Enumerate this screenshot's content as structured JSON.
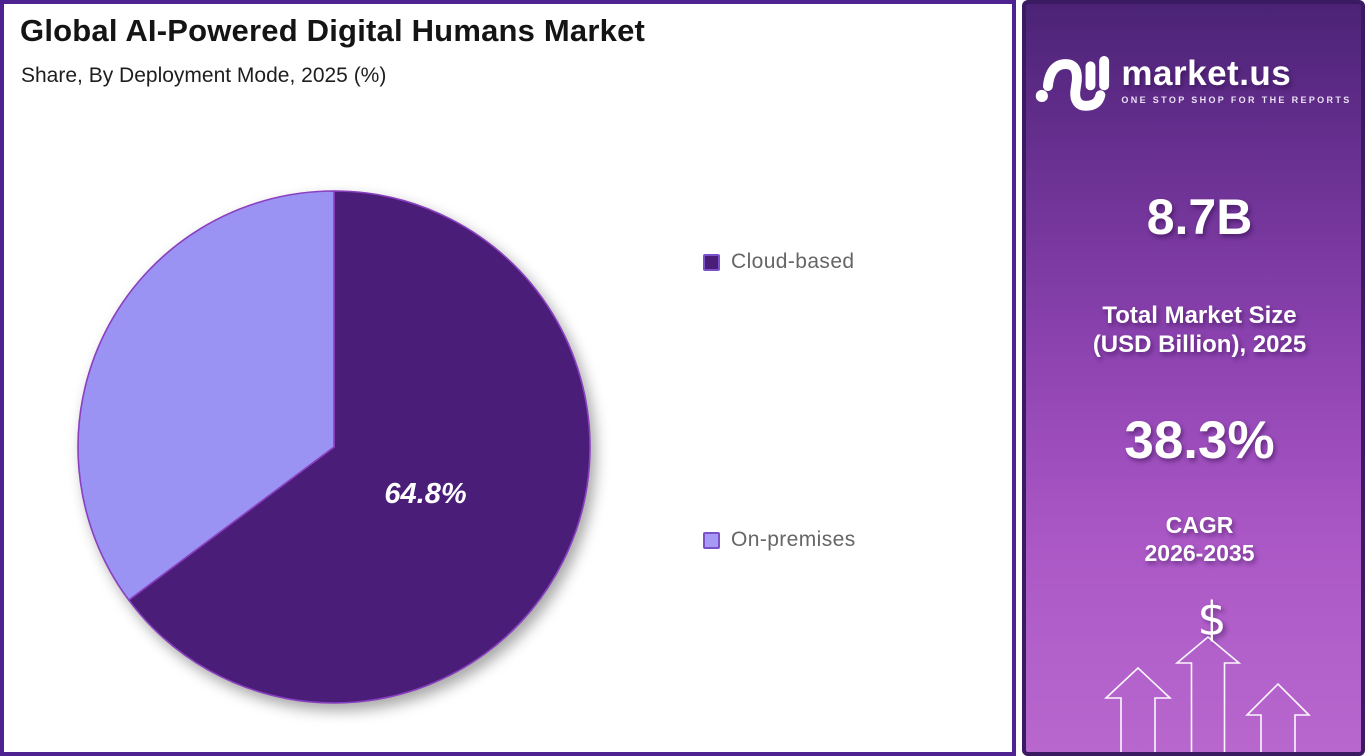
{
  "header": {
    "title": "Global AI-Powered Digital Humans Market",
    "subtitle": "Share, By Deployment Mode, 2025 (%)"
  },
  "chart_data": {
    "type": "pie",
    "title": "Global AI-Powered Digital Humans Market Share, By Deployment Mode, 2025 (%)",
    "labels": [
      "Cloud-based",
      "On-premises"
    ],
    "values": [
      64.8,
      35.2
    ],
    "unit": "%",
    "colors": [
      "#4a1e78",
      "#9b93f3"
    ],
    "slice_stroke": "#8a3fc0",
    "slice_labels": [
      "64.8%",
      ""
    ],
    "start_angle_deg": 0,
    "direction": "clockwise",
    "legend_position": "right",
    "label_radius_ratio": 0.4
  },
  "legend": {
    "items": [
      {
        "label": "Cloud-based",
        "fill": "#4a1e78",
        "border": "#7b51c9"
      },
      {
        "label": "On-premises",
        "fill": "#a79af5",
        "border": "#7b51c9"
      }
    ]
  },
  "sidebar": {
    "brand": {
      "name": "market.us",
      "tagline": "ONE STOP SHOP FOR THE REPORTS"
    },
    "stat_value_1": "8.7B",
    "stat_label_1_line1": "Total Market Size",
    "stat_label_1_line2": "(USD Billion), 2025",
    "stat_value_2": "38.3%",
    "stat_label_2_line1": "CAGR",
    "stat_label_2_line2": "2026-2035",
    "dollar": "$"
  }
}
